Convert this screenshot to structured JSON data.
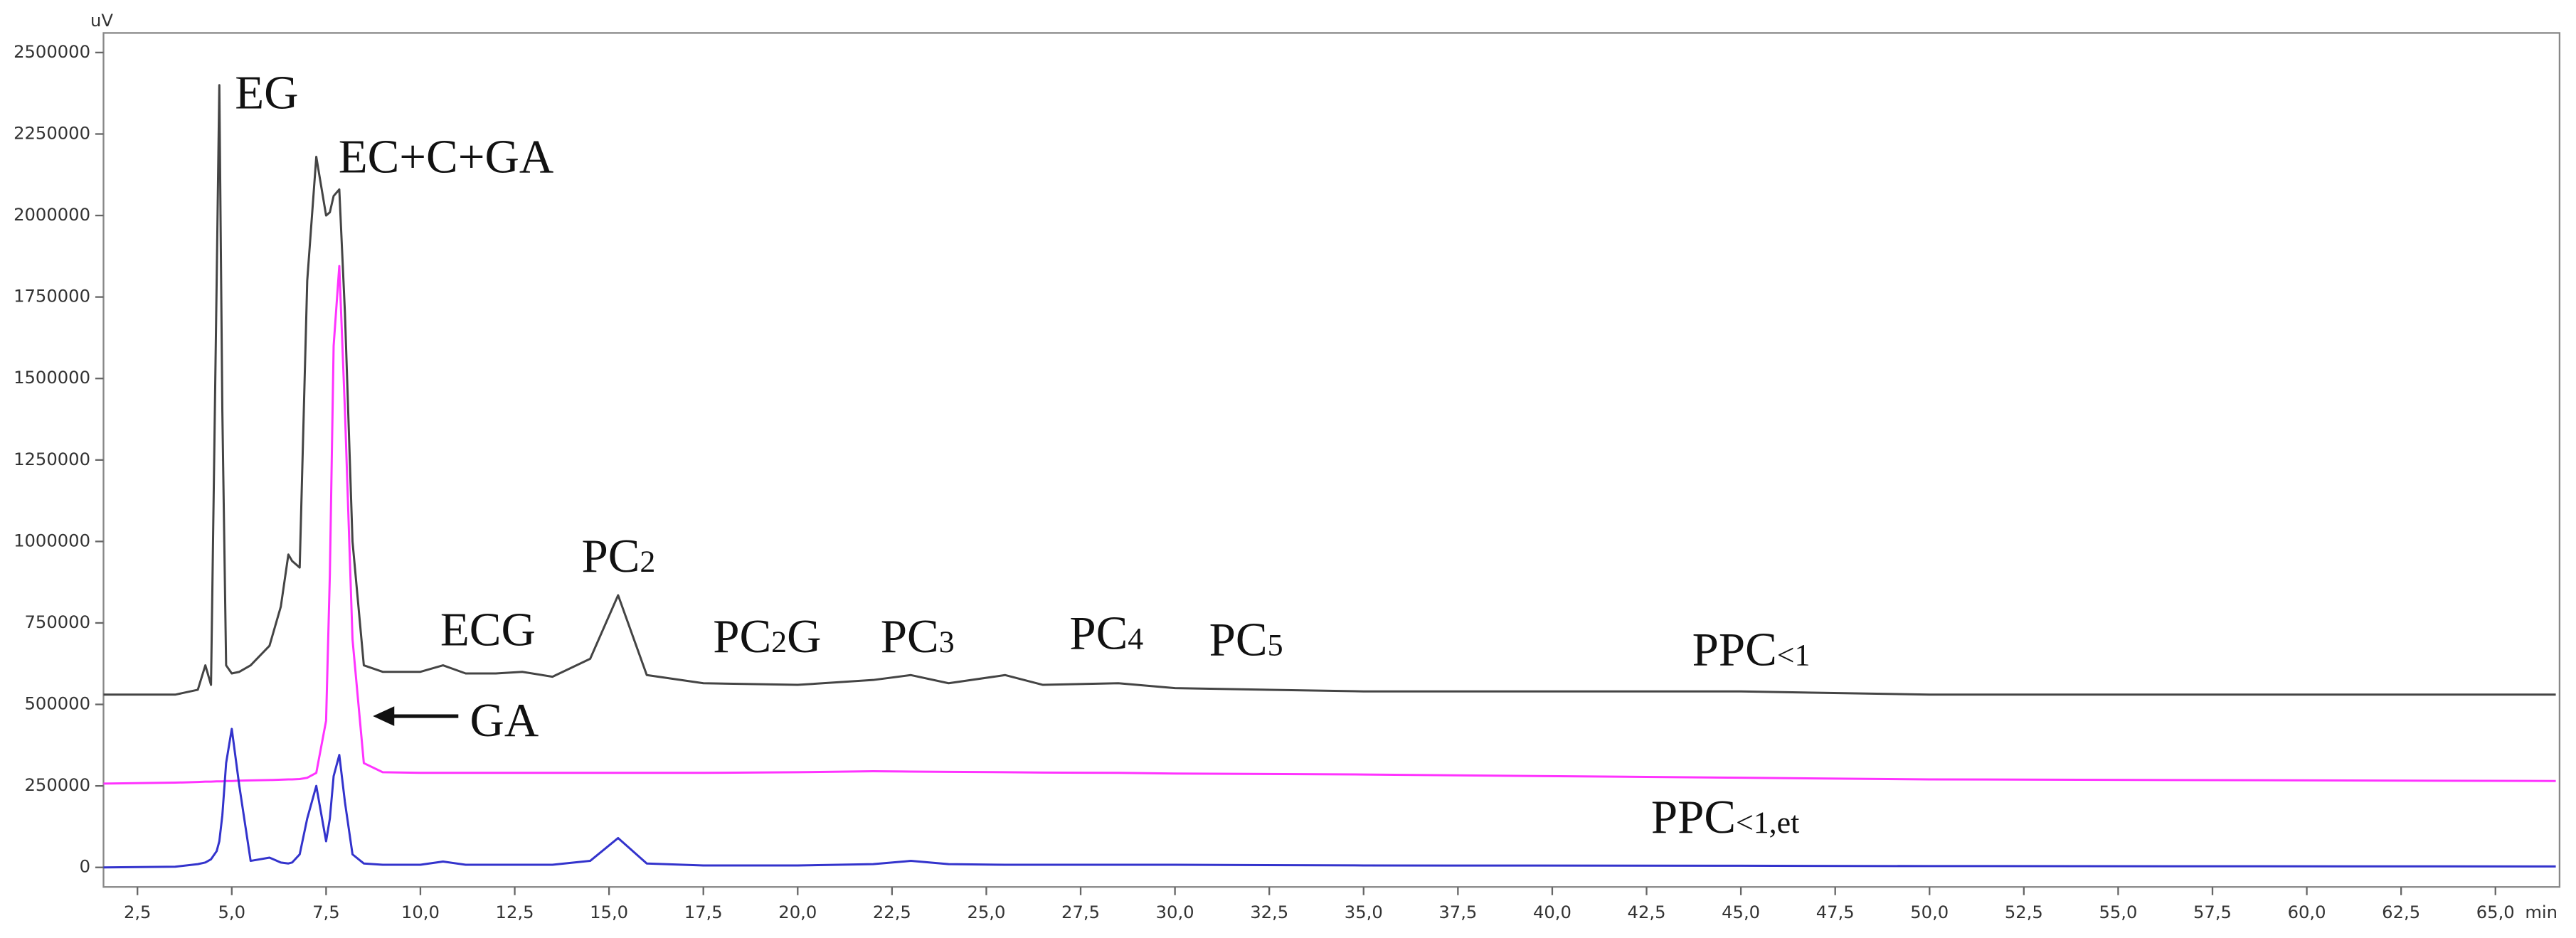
{
  "chart_data": {
    "type": "line",
    "y_unit": "uV",
    "x_label": "min",
    "xlim": [
      1.6,
      66.7
    ],
    "ylim": [
      -60000,
      2560000
    ],
    "yticks": [
      0,
      250000,
      500000,
      750000,
      1000000,
      1250000,
      1500000,
      1750000,
      2000000,
      2250000,
      2500000
    ],
    "xticks": [
      {
        "value": 2.5,
        "label": "2,5"
      },
      {
        "value": 5.0,
        "label": "5,0"
      },
      {
        "value": 7.5,
        "label": "7,5"
      },
      {
        "value": 10.0,
        "label": "10,0"
      },
      {
        "value": 12.5,
        "label": "12,5"
      },
      {
        "value": 15.0,
        "label": "15,0"
      },
      {
        "value": 17.5,
        "label": "17,5"
      },
      {
        "value": 20.0,
        "label": "20,0"
      },
      {
        "value": 22.5,
        "label": "22,5"
      },
      {
        "value": 25.0,
        "label": "25,0"
      },
      {
        "value": 27.5,
        "label": "27,5"
      },
      {
        "value": 30.0,
        "label": "30,0"
      },
      {
        "value": 32.5,
        "label": "32,5"
      },
      {
        "value": 35.0,
        "label": "35,0"
      },
      {
        "value": 37.5,
        "label": "37,5"
      },
      {
        "value": 40.0,
        "label": "40,0"
      },
      {
        "value": 42.5,
        "label": "42,5"
      },
      {
        "value": 45.0,
        "label": "45,0"
      },
      {
        "value": 47.5,
        "label": "47,5"
      },
      {
        "value": 50.0,
        "label": "50,0"
      },
      {
        "value": 52.5,
        "label": "52,5"
      },
      {
        "value": 55.0,
        "label": "55,0"
      },
      {
        "value": 57.5,
        "label": "57,5"
      },
      {
        "value": 60.0,
        "label": "60,0"
      },
      {
        "value": 62.5,
        "label": "62,5"
      },
      {
        "value": 65.0,
        "label": "65,0"
      }
    ],
    "x": [
      1.6,
      3.5,
      4.1,
      4.3,
      4.45,
      4.6,
      4.67,
      4.75,
      4.85,
      5.0,
      5.2,
      5.5,
      6.0,
      6.3,
      6.5,
      6.6,
      6.8,
      7.0,
      7.24,
      7.5,
      7.6,
      7.7,
      7.85,
      8.0,
      8.2,
      8.5,
      9.0,
      10.0,
      10.6,
      11.2,
      12.0,
      12.7,
      13.5,
      14.5,
      15.24,
      16.0,
      17.5,
      20.0,
      22.0,
      23.0,
      24.0,
      25.5,
      26.5,
      28.5,
      30.0,
      35.0,
      45.0,
      50.0,
      66.6
    ],
    "series": [
      {
        "color": "#444444",
        "values": [
          530000,
          530000,
          545000,
          620000,
          560000,
          1800000,
          2400000,
          1400000,
          620000,
          595000,
          600000,
          620000,
          680000,
          800000,
          960000,
          940000,
          920000,
          1800000,
          2180000,
          2000000,
          2010000,
          2060000,
          2080000,
          1700000,
          1000000,
          620000,
          600000,
          600000,
          620000,
          595000,
          595000,
          600000,
          585000,
          640000,
          835000,
          590000,
          565000,
          560000,
          575000,
          590000,
          565000,
          590000,
          560000,
          565000,
          550000,
          540000,
          540000,
          530000,
          530000
        ]
      },
      {
        "color": "#ff33ff",
        "values": [
          257000,
          260000,
          262000,
          263000,
          263000,
          264000,
          264000,
          264000,
          265000,
          265000,
          266000,
          267000,
          268000,
          269000,
          270000,
          270000,
          271000,
          275000,
          290000,
          450000,
          900000,
          1600000,
          1845000,
          1400000,
          700000,
          320000,
          292000,
          290000,
          290000,
          290000,
          290000,
          290000,
          290000,
          290000,
          290000,
          290000,
          290000,
          292000,
          295000,
          294000,
          293000,
          292000,
          291000,
          290000,
          288000,
          285000,
          275000,
          270000,
          265000
        ]
      },
      {
        "color": "#3333cc",
        "values": [
          0,
          2000,
          10000,
          15000,
          25000,
          50000,
          80000,
          160000,
          320000,
          425000,
          250000,
          20000,
          30000,
          15000,
          12000,
          15000,
          40000,
          150000,
          250000,
          80000,
          150000,
          280000,
          345000,
          200000,
          40000,
          12000,
          8000,
          8000,
          18000,
          8000,
          8000,
          8000,
          8000,
          20000,
          90000,
          12000,
          6000,
          6000,
          10000,
          20000,
          10000,
          8000,
          8000,
          8000,
          8000,
          6000,
          5000,
          4000,
          3000
        ]
      }
    ],
    "annotations": [
      {
        "text": "EG"
      },
      {
        "text": "EC+C+GA"
      },
      {
        "text": "ECG"
      },
      {
        "text": "PC",
        "sub": "2"
      },
      {
        "text": "PC",
        "sub": "2",
        "after": "G"
      },
      {
        "text": "PC",
        "sub": "3"
      },
      {
        "text": "PC",
        "sub": "4"
      },
      {
        "text": "PC",
        "sub": "5"
      },
      {
        "text": "PPC",
        "sub": "<1"
      },
      {
        "text": "GA"
      },
      {
        "text": "PPC",
        "sub": "<1,et"
      }
    ]
  }
}
